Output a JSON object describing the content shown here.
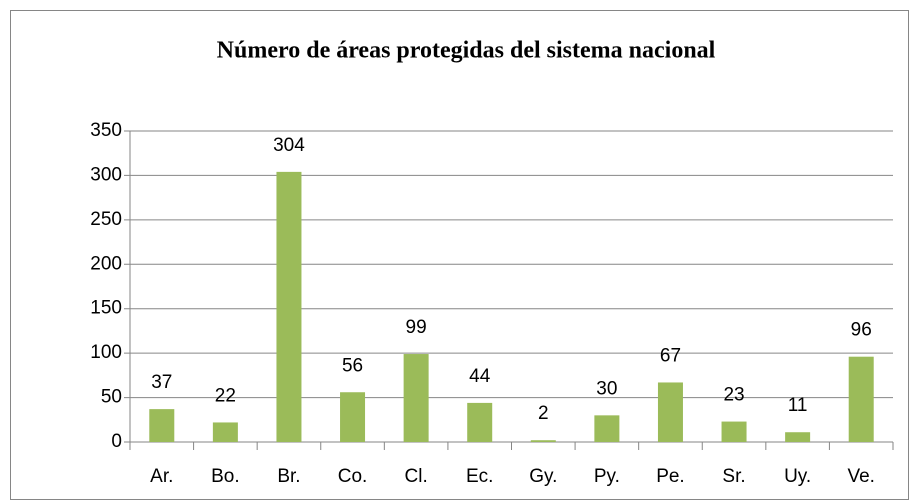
{
  "chart_data": {
    "type": "bar",
    "title": "Número de áreas protegidas del sistema nacional",
    "categories": [
      "Ar.",
      "Bo.",
      "Br.",
      "Co.",
      "Cl.",
      "Ec.",
      "Gy.",
      "Py.",
      "Pe.",
      "Sr.",
      "Uy.",
      "Ve."
    ],
    "values": [
      37,
      22,
      304,
      56,
      99,
      44,
      2,
      30,
      67,
      23,
      11,
      96
    ],
    "color": "#9bbb59",
    "ylim": [
      0,
      350
    ],
    "yticks": [
      0,
      50,
      100,
      150,
      200,
      250,
      300,
      350
    ],
    "grid": true
  }
}
